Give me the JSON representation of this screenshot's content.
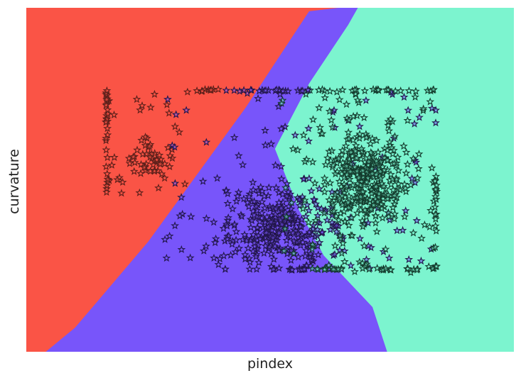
{
  "chart_data": {
    "type": "scatter",
    "subtype": "decision-boundary",
    "title": "",
    "xlabel": "pindex",
    "ylabel": "curvature",
    "ticks_visible": false,
    "grid": false,
    "legend": "none",
    "marker": "star",
    "regions": [
      {
        "class": 0,
        "color": "#fa5446"
      },
      {
        "class": 1,
        "color": "#7855fa"
      },
      {
        "class": 2,
        "color": "#7cf4cf"
      }
    ],
    "xlim": [
      0,
      1
    ],
    "ylim": [
      0,
      1
    ],
    "boundaries": [
      {
        "between": [
          0,
          1
        ],
        "points": [
          [
            0.04,
            0.0
          ],
          [
            0.1,
            0.07
          ],
          [
            0.25,
            0.32
          ],
          [
            0.45,
            0.71
          ],
          [
            0.58,
            0.99
          ],
          [
            0.64,
            1.0
          ]
        ]
      },
      {
        "between": [
          1,
          2
        ],
        "points": [
          [
            0.68,
            1.0
          ],
          [
            0.66,
            0.95
          ],
          [
            0.58,
            0.78
          ],
          [
            0.51,
            0.59
          ],
          [
            0.56,
            0.41
          ],
          [
            0.61,
            0.28
          ],
          [
            0.71,
            0.13
          ],
          [
            0.74,
            0.0
          ]
        ]
      }
    ],
    "point_clusters": [
      {
        "class": 0,
        "edge_color": "#5a1f1a",
        "count": 70,
        "x_range": [
          0.16,
          0.34
        ],
        "y_range": [
          0.46,
          0.76
        ],
        "mean": [
          0.25,
          0.55
        ]
      },
      {
        "class": 1,
        "edge_color": "#22164a",
        "count": 420,
        "x_range": [
          0.28,
          0.84
        ],
        "y_range": [
          0.24,
          0.76
        ],
        "mean": [
          0.52,
          0.36
        ]
      },
      {
        "class": 2,
        "edge_color": "#133a2c",
        "count": 430,
        "x_range": [
          0.52,
          0.84
        ],
        "y_range": [
          0.23,
          0.76
        ],
        "mean": [
          0.7,
          0.5
        ]
      }
    ],
    "point_rows": [
      {
        "y": 0.76,
        "x_range": [
          0.32,
          0.84
        ],
        "count": 60
      },
      {
        "y": 0.24,
        "x_range": [
          0.5,
          0.84
        ],
        "count": 40
      }
    ],
    "point_columns": [
      {
        "x": 0.165,
        "y_range": [
          0.46,
          0.76
        ],
        "count": 30
      },
      {
        "x": 0.84,
        "y_range": [
          0.24,
          0.52
        ],
        "count": 20
      }
    ]
  }
}
